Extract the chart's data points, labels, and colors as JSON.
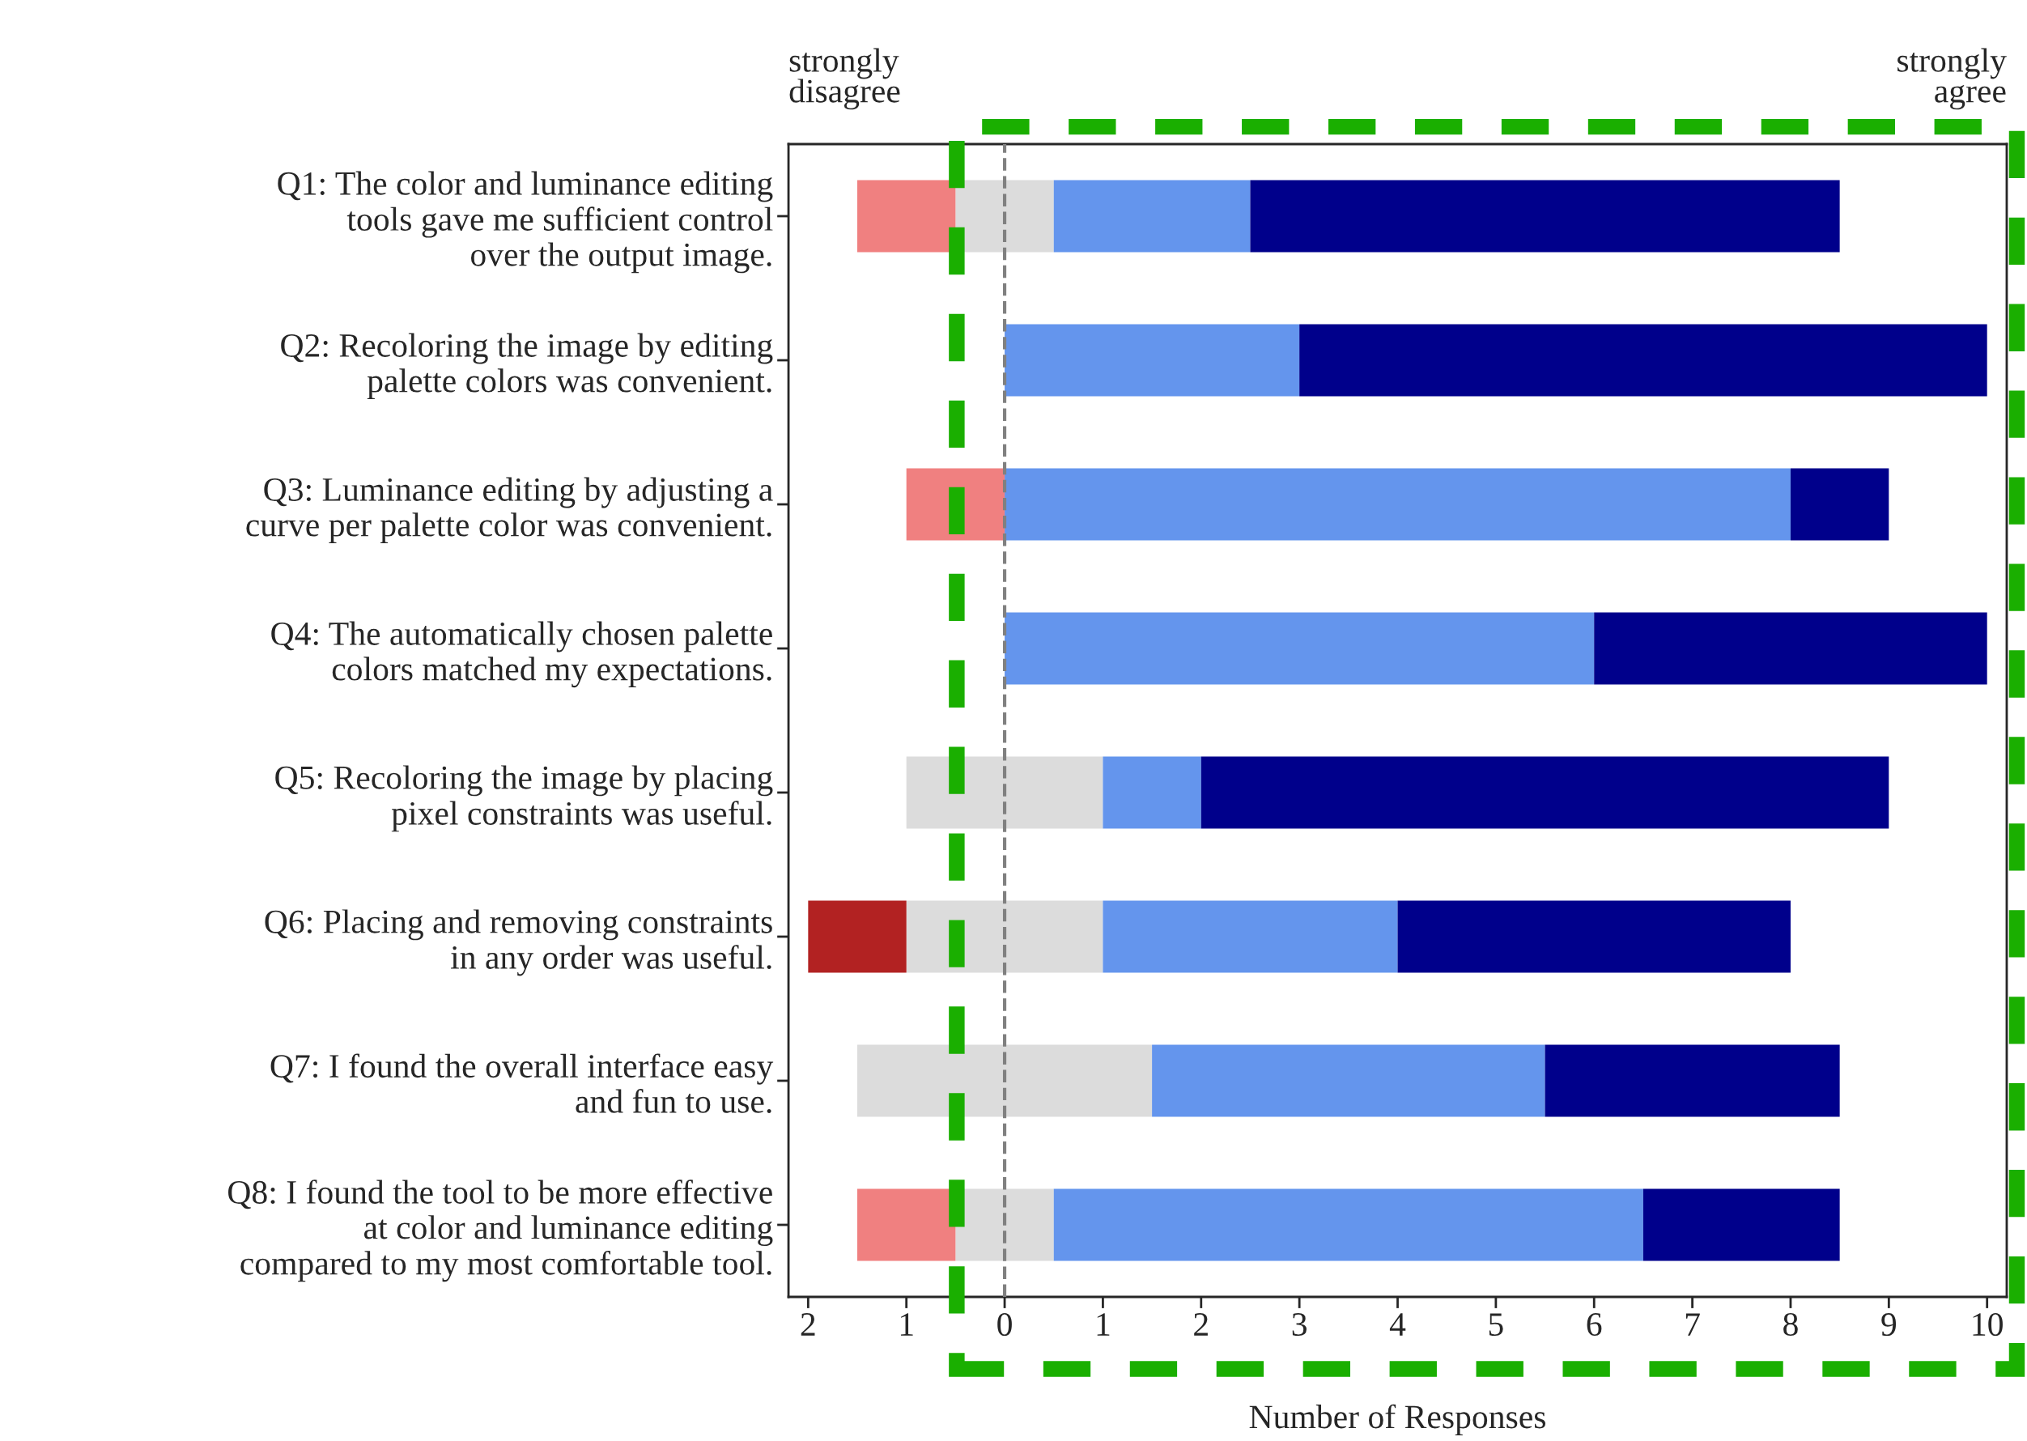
{
  "chart_data": {
    "type": "bar",
    "orientation": "horizontal",
    "stacked": true,
    "xlabel": "Number of Responses",
    "categories": [
      "Q1: The color and luminance editing\ntools gave me sufficient control\nover the output image.",
      "Q2: Recoloring the image by editing\npalette colors was convenient.",
      "Q3: Luminance editing by adjusting a\ncurve per palette color was convenient.",
      "Q4: The automatically chosen palette\ncolors matched my expectations.",
      "Q5: Recoloring the image by placing\npixel constraints was useful.",
      "Q6: Placing and removing constraints\nin any order was useful.",
      "Q7: I found the overall interface easy\nand fun to use.",
      "Q8: I found the tool to be more effective\nat color and luminance editing\ncompared to my most comfortable tool."
    ],
    "series": [
      {
        "color": "#dcdcdc",
        "values": [
          0.5,
          0,
          0,
          0,
          1,
          1,
          1.5,
          0.5
        ]
      },
      {
        "color": "#dcdcdc",
        "values": [
          -0.5,
          0,
          0,
          0,
          -1,
          -1,
          -1.5,
          -0.5
        ]
      },
      {
        "color": "#f08080",
        "values": [
          -1,
          0,
          -1,
          0,
          0,
          0,
          0,
          -1
        ]
      },
      {
        "color": "#b22222",
        "values": [
          0,
          0,
          0,
          0,
          0,
          -1,
          0,
          0
        ]
      },
      {
        "color": "#6495ed",
        "values": [
          2,
          3,
          8,
          6,
          1,
          3,
          4,
          6
        ]
      },
      {
        "color": "#00008b",
        "values": [
          6,
          7,
          1,
          4,
          7,
          4,
          3,
          2
        ]
      }
    ],
    "xlim": [
      -2.2,
      10.2
    ],
    "xticks": [
      {
        "value": -2,
        "label": "2"
      },
      {
        "value": -1,
        "label": "1"
      },
      0,
      1,
      2,
      3,
      4,
      5,
      6,
      7,
      8,
      9,
      10
    ],
    "ref_lines": [
      {
        "axis": "x",
        "value": 0,
        "color": "#808080",
        "line_style": "dashed"
      }
    ],
    "annotations": [
      "strongly\ndisagree",
      "strongly\nagree"
    ],
    "grid": false,
    "legend": false
  }
}
